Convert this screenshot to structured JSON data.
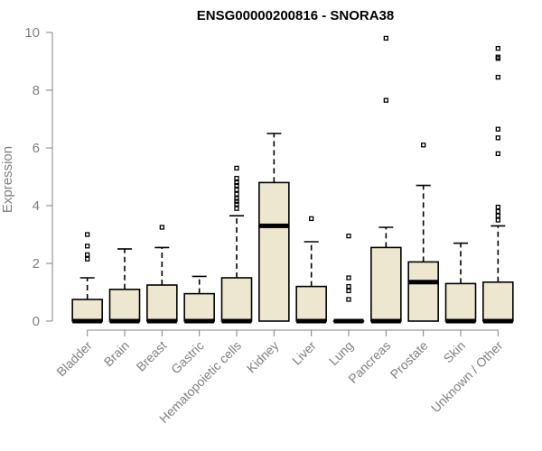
{
  "chart_data": {
    "type": "boxplot",
    "title": "ENSG00000200816 - SNORA38",
    "xlabel": "",
    "ylabel": "Expression",
    "ylim": [
      0,
      10
    ],
    "yticks": [
      0,
      2,
      4,
      6,
      8,
      10
    ],
    "grid": false,
    "box_color": "#ede7d0",
    "categories": [
      "Bladder",
      "Brain",
      "Breast",
      "Gastric",
      "Hematopoietic cells",
      "Kidney",
      "Liver",
      "Lung",
      "Pancreas",
      "Prostate",
      "Skin",
      "Unknown / Other"
    ],
    "series": [
      {
        "name": "Bladder",
        "whisker_low": 0,
        "q1": 0,
        "median": 0,
        "q3": 0.75,
        "whisker_high": 1.5,
        "outliers": [
          2.15,
          2.3,
          2.6,
          3.0
        ]
      },
      {
        "name": "Brain",
        "whisker_low": 0,
        "q1": 0,
        "median": 0,
        "q3": 1.1,
        "whisker_high": 2.5,
        "outliers": []
      },
      {
        "name": "Breast",
        "whisker_low": 0,
        "q1": 0,
        "median": 0,
        "q3": 1.25,
        "whisker_high": 2.55,
        "outliers": [
          3.25
        ]
      },
      {
        "name": "Gastric",
        "whisker_low": 0,
        "q1": 0,
        "median": 0,
        "q3": 0.95,
        "whisker_high": 1.55,
        "outliers": []
      },
      {
        "name": "Hematopoietic cells",
        "whisker_low": 0,
        "q1": 0,
        "median": 0,
        "q3": 1.5,
        "whisker_high": 3.65,
        "outliers": [
          3.9,
          4.05,
          4.15,
          4.25,
          4.4,
          4.55,
          4.7,
          4.8,
          4.95,
          5.3
        ]
      },
      {
        "name": "Kidney",
        "whisker_low": 0,
        "q1": 0,
        "median": 3.3,
        "q3": 4.8,
        "whisker_high": 6.5,
        "outliers": []
      },
      {
        "name": "Liver",
        "whisker_low": 0,
        "q1": 0,
        "median": 0,
        "q3": 1.2,
        "whisker_high": 2.75,
        "outliers": [
          3.55
        ]
      },
      {
        "name": "Lung",
        "whisker_low": 0,
        "q1": 0,
        "median": 0,
        "q3": 0,
        "whisker_high": 0,
        "outliers": [
          0.75,
          1.05,
          1.2,
          1.5,
          2.95
        ]
      },
      {
        "name": "Pancreas",
        "whisker_low": 0,
        "q1": 0,
        "median": 0,
        "q3": 2.55,
        "whisker_high": 3.25,
        "outliers": [
          7.65,
          9.8
        ]
      },
      {
        "name": "Prostate",
        "whisker_low": 0,
        "q1": 0,
        "median": 1.35,
        "q3": 2.05,
        "whisker_high": 4.7,
        "outliers": [
          6.1
        ]
      },
      {
        "name": "Skin",
        "whisker_low": 0,
        "q1": 0,
        "median": 0,
        "q3": 1.3,
        "whisker_high": 2.7,
        "outliers": []
      },
      {
        "name": "Unknown / Other",
        "whisker_low": 0,
        "q1": 0,
        "median": 0,
        "q3": 1.35,
        "whisker_high": 3.3,
        "outliers": [
          3.5,
          3.65,
          3.8,
          3.95,
          5.8,
          6.35,
          6.65,
          8.45,
          9.1,
          9.15,
          9.45
        ]
      }
    ]
  }
}
